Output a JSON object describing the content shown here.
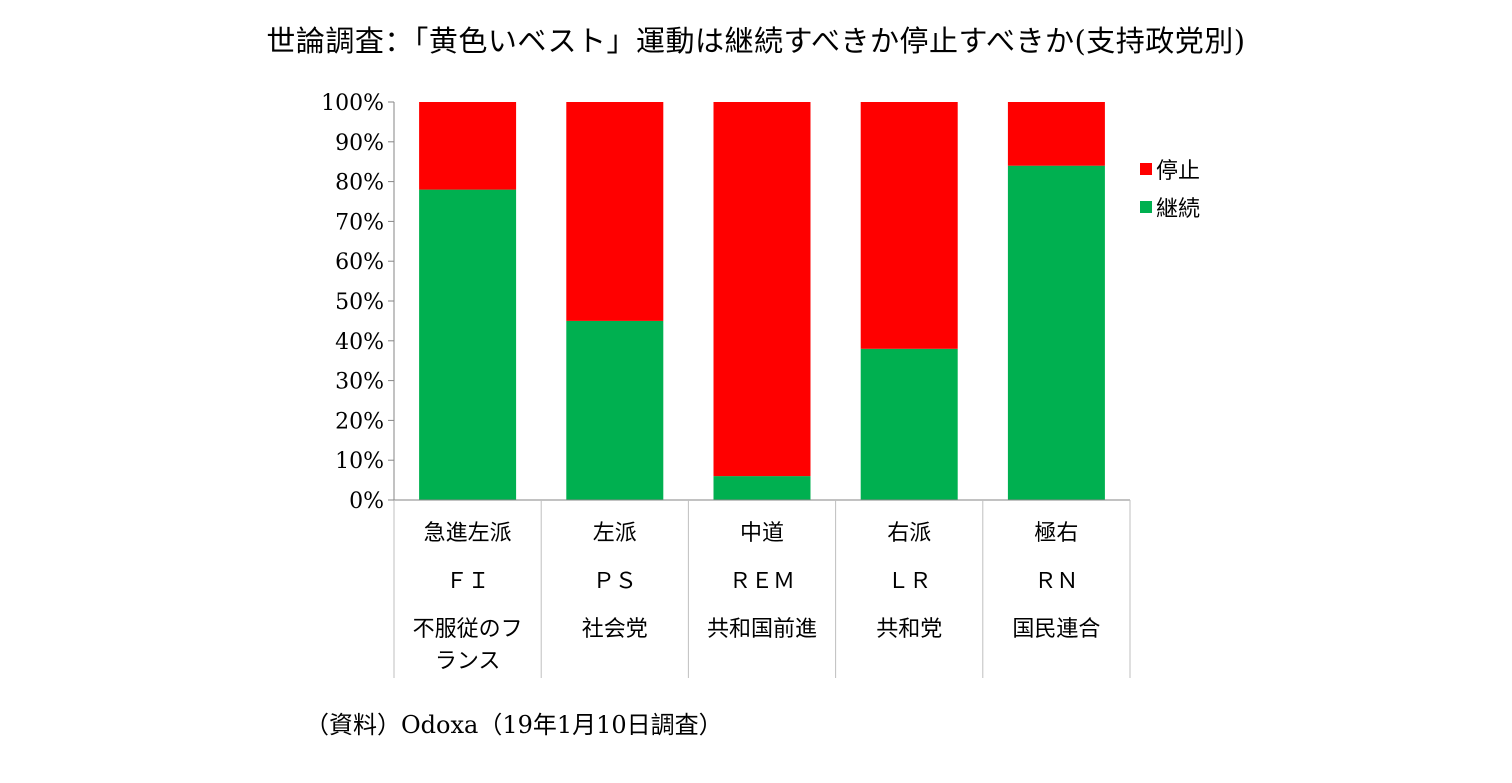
{
  "chart_data": {
    "type": "bar",
    "stacked": true,
    "title": "世論調査：「黄色いベスト」運動は継続すべきか停止すべきか(支持政党別)",
    "categories": [
      [
        "急進左派",
        "ＦＩ",
        "不服従のフ",
        "ランス"
      ],
      [
        "左派",
        "ＰＳ",
        "社会党"
      ],
      [
        "中道",
        "ＲＥＭ",
        "共和国前進"
      ],
      [
        "右派",
        "ＬＲ",
        "共和党"
      ],
      [
        "極右",
        "ＲＮ",
        "国民連合"
      ]
    ],
    "series": [
      {
        "name": "継続",
        "color": "#00b050",
        "values": [
          78,
          45,
          6,
          38,
          84
        ]
      },
      {
        "name": "停止",
        "color": "#ff0000",
        "values": [
          22,
          55,
          94,
          62,
          16
        ]
      }
    ],
    "yticks": [
      "0%",
      "10%",
      "20%",
      "30%",
      "40%",
      "50%",
      "60%",
      "70%",
      "80%",
      "90%",
      "100%"
    ],
    "ylim": [
      0,
      100
    ],
    "legend": "right",
    "legend_order": [
      "停止",
      "継続"
    ],
    "grid": false
  },
  "source": "（資料）Odoxa（19年1月10日調査）"
}
